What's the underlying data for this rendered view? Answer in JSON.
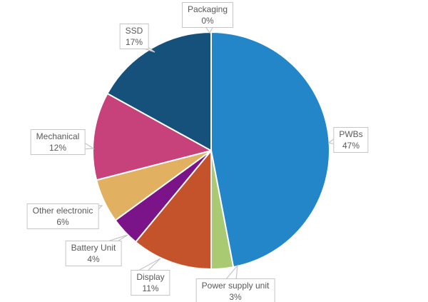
{
  "chart_data": {
    "type": "pie",
    "title": "",
    "direction": "clockwise",
    "start_angle_deg": 0,
    "slice_border_color": "#ffffff",
    "callout_border_color": "#c6c6c6",
    "label_text_color": "#595959",
    "slices": [
      {
        "key": "packaging",
        "label": "Packaging",
        "value": 0,
        "pct_label": "0%",
        "color": "#9e9e9e"
      },
      {
        "key": "pwbs",
        "label": "PWBs",
        "value": 47,
        "pct_label": "47%",
        "color": "#2286c9"
      },
      {
        "key": "power_supply",
        "label": "Power supply unit",
        "value": 3,
        "pct_label": "3%",
        "color": "#a9c973"
      },
      {
        "key": "display",
        "label": "Display",
        "value": 11,
        "pct_label": "11%",
        "color": "#c4522a"
      },
      {
        "key": "battery",
        "label": "Battery Unit",
        "value": 4,
        "pct_label": "4%",
        "color": "#7a1488"
      },
      {
        "key": "other_electronic",
        "label": "Other electronic",
        "value": 6,
        "pct_label": "6%",
        "color": "#e2b061"
      },
      {
        "key": "mechanical",
        "label": "Mechanical",
        "value": 12,
        "pct_label": "12%",
        "color": "#c7427b"
      },
      {
        "key": "ssd",
        "label": "SSD",
        "value": 17,
        "pct_label": "17%",
        "color": "#16517b"
      }
    ]
  }
}
